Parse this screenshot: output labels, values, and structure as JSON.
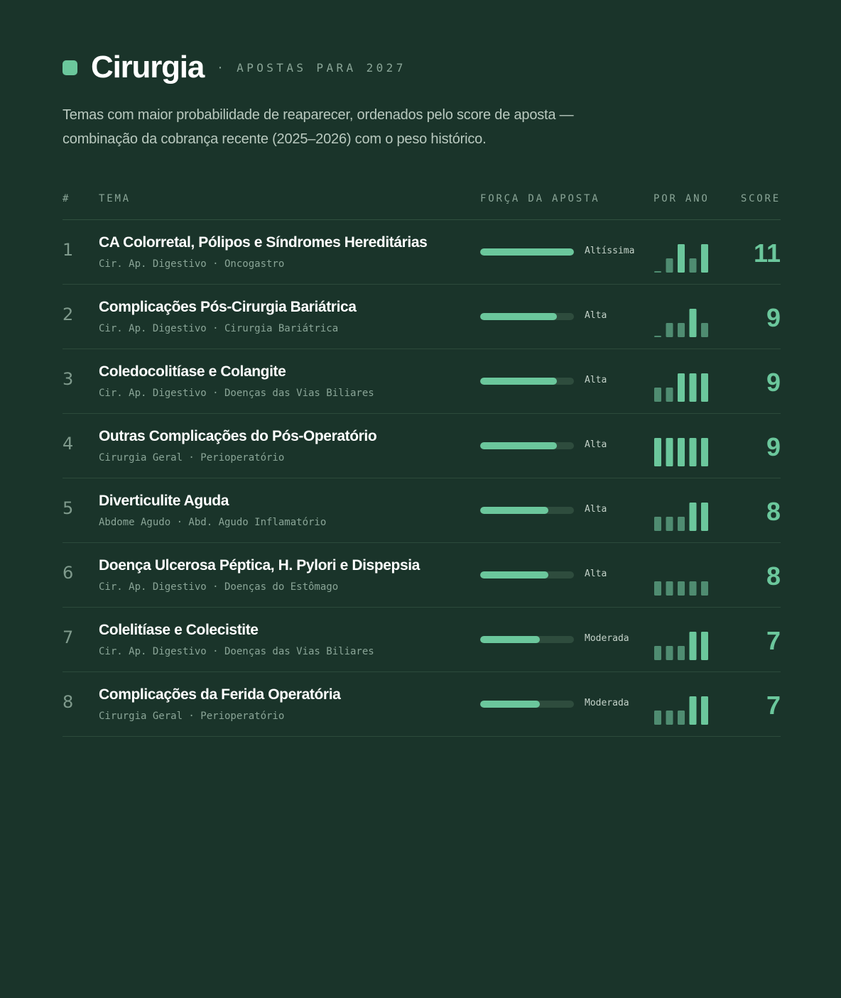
{
  "header": {
    "title": "Cirurgia",
    "kicker": "· APOSTAS PARA 2027",
    "subtitle": "Temas com maior probabilidade de reaparecer, ordenados pelo score de aposta — combinação da cobrança recente (2025–2026) com o peso histórico."
  },
  "colors": {
    "background": "#1a342a",
    "accent": "#6bc79c",
    "accent_muted": "#4f8c71",
    "track": "#2e4c3d"
  },
  "columns": {
    "rank": "#",
    "topic": "TEMA",
    "strength": "FORÇA DA APOSTA",
    "per_year": "POR ANO",
    "score": "SCORE"
  },
  "rows": [
    {
      "rank": "1",
      "name": "CA Colorretal, Pólipos e Síndromes Hereditárias",
      "sub": "Cir. Ap. Digestivo · Oncogastro",
      "level": "Altíssima",
      "strength": 1.0,
      "years": [
        0,
        1,
        2,
        1,
        2
      ],
      "score": "11"
    },
    {
      "rank": "2",
      "name": "Complicações Pós-Cirurgia Bariátrica",
      "sub": "Cir. Ap. Digestivo · Cirurgia Bariátrica",
      "level": "Alta",
      "strength": 0.82,
      "years": [
        0,
        1,
        1,
        2,
        1
      ],
      "score": "9"
    },
    {
      "rank": "3",
      "name": "Coledocolitíase e Colangite",
      "sub": "Cir. Ap. Digestivo · Doenças das Vias Biliares",
      "level": "Alta",
      "strength": 0.82,
      "years": [
        1,
        1,
        2,
        2,
        2
      ],
      "score": "9"
    },
    {
      "rank": "4",
      "name": "Outras Complicações do Pós-Operatório",
      "sub": "Cirurgia Geral · Perioperatório",
      "level": "Alta",
      "strength": 0.82,
      "years": [
        2,
        3,
        2,
        2,
        2
      ],
      "score": "9"
    },
    {
      "rank": "5",
      "name": "Diverticulite Aguda",
      "sub": "Abdome Agudo · Abd. Agudo Inflamatório",
      "level": "Alta",
      "strength": 0.73,
      "years": [
        1,
        1,
        1,
        2,
        2
      ],
      "score": "8"
    },
    {
      "rank": "6",
      "name": "Doença Ulcerosa Péptica, H. Pylori e Dispepsia",
      "sub": "Cir. Ap. Digestivo · Doenças do Estômago",
      "level": "Alta",
      "strength": 0.73,
      "years": [
        1,
        1,
        1,
        1,
        1
      ],
      "score": "8"
    },
    {
      "rank": "7",
      "name": "Colelitíase e Colecistite",
      "sub": "Cir. Ap. Digestivo · Doenças das Vias Biliares",
      "level": "Moderada",
      "strength": 0.64,
      "years": [
        1,
        1,
        1,
        2,
        2
      ],
      "score": "7"
    },
    {
      "rank": "8",
      "name": "Complicações da Ferida Operatória",
      "sub": "Cirurgia Geral · Perioperatório",
      "level": "Moderada",
      "strength": 0.64,
      "years": [
        1,
        1,
        1,
        2,
        2
      ],
      "score": "7"
    }
  ]
}
